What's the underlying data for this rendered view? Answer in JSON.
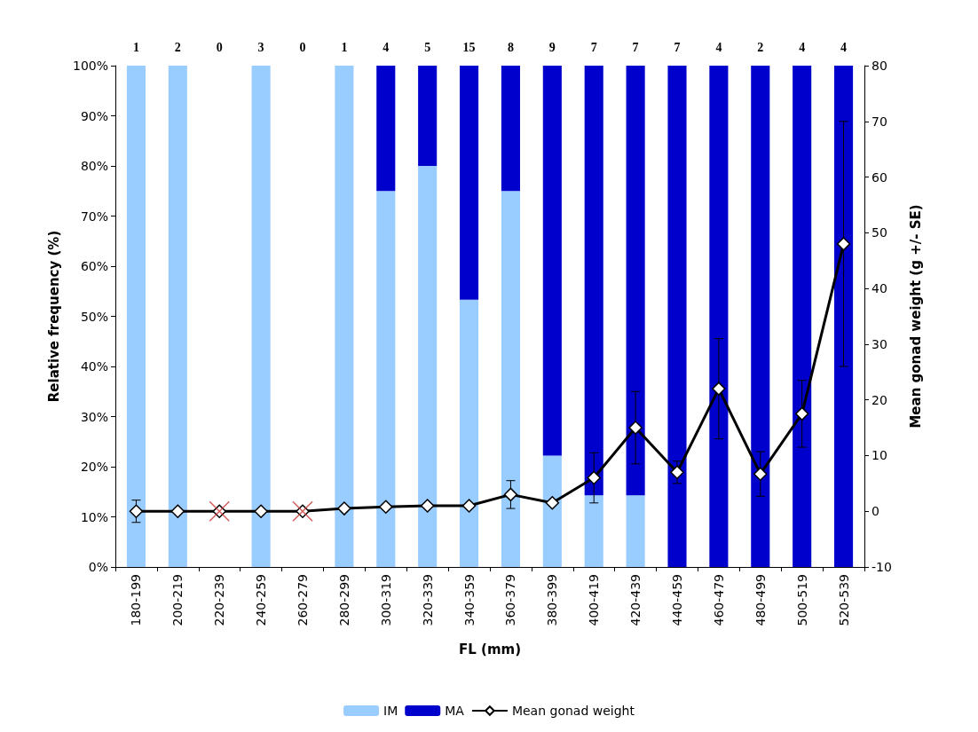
{
  "chart_data": {
    "type": "bar",
    "stacked": true,
    "xlabel": "FL (mm)",
    "ylabel": "Relative frequency (%)",
    "y2label": "Mean gonad weight (g +/- SE)",
    "categories": [
      "180-199",
      "200-219",
      "220-239",
      "240-259",
      "260-279",
      "280-299",
      "300-319",
      "320-339",
      "340-359",
      "360-379",
      "380-399",
      "400-419",
      "420-439",
      "440-459",
      "460-479",
      "480-499",
      "500-519",
      "520-539"
    ],
    "series": [
      {
        "name": "IM",
        "color": "#99ccff",
        "values": [
          100,
          100,
          0,
          100,
          0,
          100,
          75,
          80,
          53.3,
          75,
          22.2,
          14.3,
          14.3,
          0,
          0,
          0,
          0,
          0
        ]
      },
      {
        "name": "MA",
        "color": "#0000cc",
        "values": [
          0,
          0,
          0,
          0,
          0,
          0,
          25,
          20,
          46.7,
          25,
          77.8,
          85.7,
          85.7,
          100,
          100,
          100,
          100,
          100
        ]
      },
      {
        "name": "Mean gonad weight",
        "type": "line",
        "axis": "y2",
        "color": "#000000",
        "marker": "diamond",
        "values": [
          0,
          0,
          0,
          0,
          0,
          0.5,
          0.8,
          1,
          1,
          3,
          1.5,
          6,
          15,
          7,
          22,
          6.7,
          17.5,
          48
        ],
        "errors": [
          2,
          null,
          null,
          null,
          null,
          null,
          null,
          null,
          null,
          2.5,
          null,
          4.5,
          6.5,
          2,
          9,
          4,
          6,
          22
        ]
      },
      {
        "type": "scatter",
        "axis": "y2",
        "color": "#cc3333",
        "marker": "cross",
        "values": [
          null,
          null,
          0,
          null,
          0,
          null,
          null,
          null,
          null,
          null,
          null,
          null,
          null,
          null,
          null,
          null,
          null,
          null
        ]
      }
    ],
    "annotations": [
      "1",
      "2",
      "0",
      "3",
      "0",
      "1",
      "4",
      "5",
      "15",
      "8",
      "9",
      "7",
      "7",
      "7",
      "4",
      "2",
      "4",
      "4"
    ],
    "ylim": [
      0,
      100
    ],
    "yticks": [
      {
        "value": 0,
        "label": "0%"
      },
      {
        "value": 10,
        "label": "10%"
      },
      {
        "value": 20,
        "label": "20%"
      },
      {
        "value": 30,
        "label": "30%"
      },
      {
        "value": 40,
        "label": "40%"
      },
      {
        "value": 50,
        "label": "50%"
      },
      {
        "value": 60,
        "label": "60%"
      },
      {
        "value": 70,
        "label": "70%"
      },
      {
        "value": 80,
        "label": "80%"
      },
      {
        "value": 90,
        "label": "90%"
      },
      {
        "value": 100,
        "label": "100%"
      }
    ],
    "y2lim": [
      -10,
      80
    ],
    "y2ticks": [
      -10,
      0,
      10,
      20,
      30,
      40,
      50,
      60,
      70,
      80
    ],
    "grid": false,
    "legend": "bottom"
  }
}
